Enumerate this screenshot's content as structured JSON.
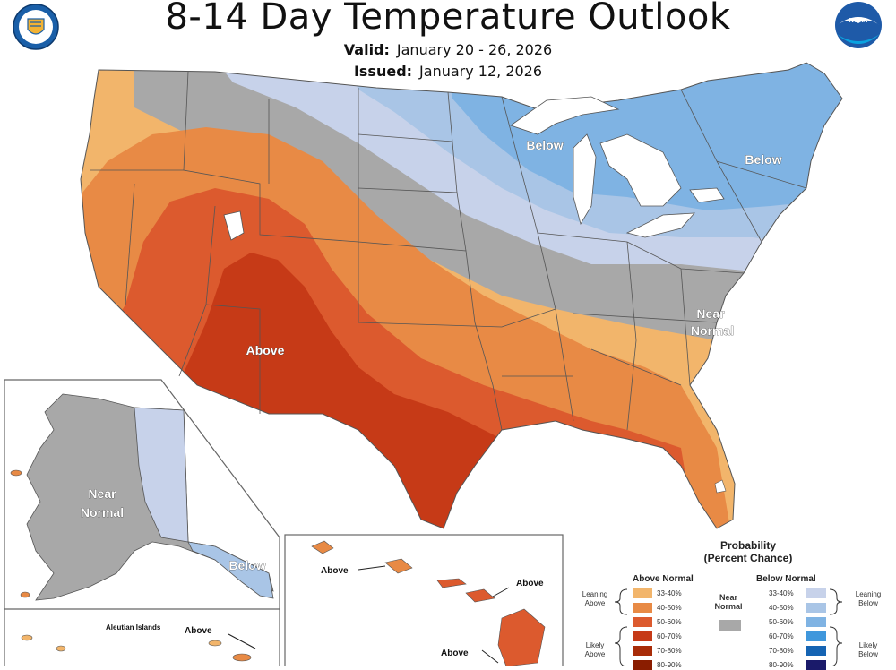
{
  "header": {
    "title": "8-14 Day Temperature Outlook",
    "valid_label": "Valid:",
    "valid_value": "January 20 - 26, 2026",
    "issued_label": "Issued:",
    "issued_value": "January 12, 2026"
  },
  "logos": {
    "left": "department-of-commerce-seal",
    "right": "noaa-logo",
    "noaa_text": "NOAA"
  },
  "colors": {
    "above_33_40": "#f2b56b",
    "above_40_50": "#e88a45",
    "above_50_60": "#dc5a2e",
    "above_60_70": "#c63a17",
    "above_70_80": "#a82c08",
    "above_80_90": "#8a1d00",
    "near_normal": "#a8a8a8",
    "below_33_40": "#c7d2ea",
    "below_40_50": "#a9c5e6",
    "below_50_60": "#7fb3e3",
    "below_60_70": "#3f97dc",
    "below_70_80": "#1564b3",
    "below_80_90": "#1a1a6a"
  },
  "map_labels": {
    "conus_below_greatlakes": "Below",
    "conus_below_northeast": "Below",
    "conus_above_southwest": "Above",
    "conus_near_normal_line1": "Near",
    "conus_near_normal_line2": "Normal",
    "alaska_near_line1": "Near",
    "alaska_near_line2": "Normal",
    "alaska_below": "Below",
    "aleutian_islands": "Aleutian Islands",
    "aleutian_above": "Above",
    "hawaii_above_1": "Above",
    "hawaii_above_2": "Above",
    "hawaii_above_3": "Above"
  },
  "legend": {
    "title_line1": "Probability",
    "title_line2": "(Percent Chance)",
    "above_normal": "Above Normal",
    "below_normal": "Below Normal",
    "near_normal_line1": "Near",
    "near_normal_line2": "Normal",
    "leaning_above_1": "Leaning",
    "leaning_above_2": "Above",
    "likely_above_1": "Likely",
    "likely_above_2": "Above",
    "leaning_below_1": "Leaning",
    "leaning_below_2": "Below",
    "likely_below_1": "Likely",
    "likely_below_2": "Below",
    "pct_33_40": "33-40%",
    "pct_40_50": "40-50%",
    "pct_50_60": "50-60%",
    "pct_60_70": "60-70%",
    "pct_70_80": "70-80%",
    "pct_80_90": "80-90%"
  }
}
